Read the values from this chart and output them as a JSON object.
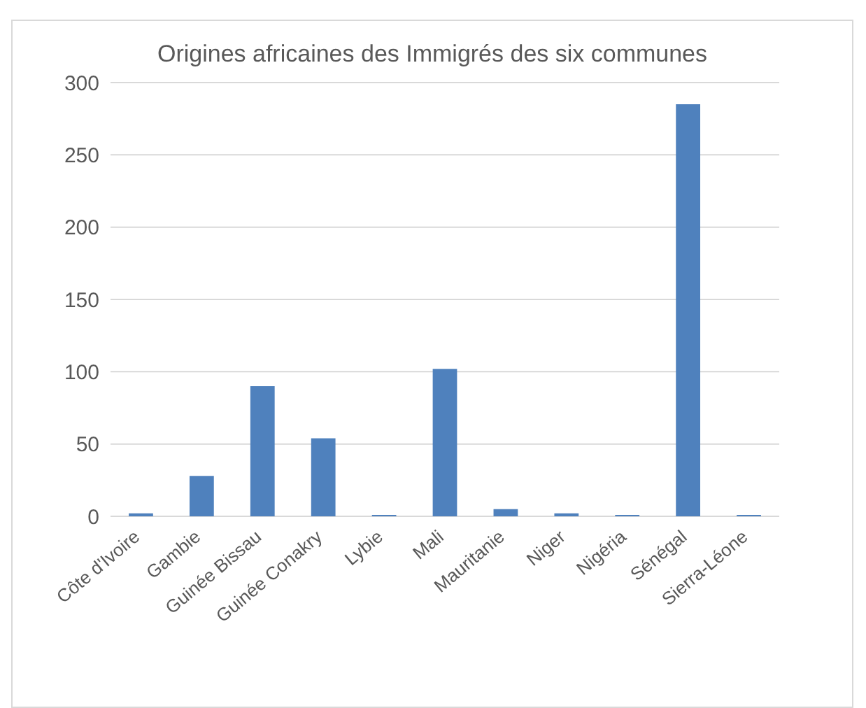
{
  "chart_data": {
    "type": "bar",
    "title": "Origines africaines des Immigrés des six communes",
    "categories": [
      "Côte d'Ivoire",
      "Gambie",
      "Guinée Bissau",
      "Guinée Conakry",
      "Lybie",
      "Mali",
      "Mauritanie",
      "Niger",
      "Nigéria",
      "Sénégal",
      "Sierra-Léone"
    ],
    "values": [
      2,
      28,
      90,
      54,
      1,
      102,
      5,
      2,
      1,
      285,
      1
    ],
    "color": "#4f81bd",
    "ylim": [
      0,
      300
    ],
    "yticks": [
      0,
      50,
      100,
      150,
      200,
      250,
      300
    ],
    "grid": "y"
  }
}
